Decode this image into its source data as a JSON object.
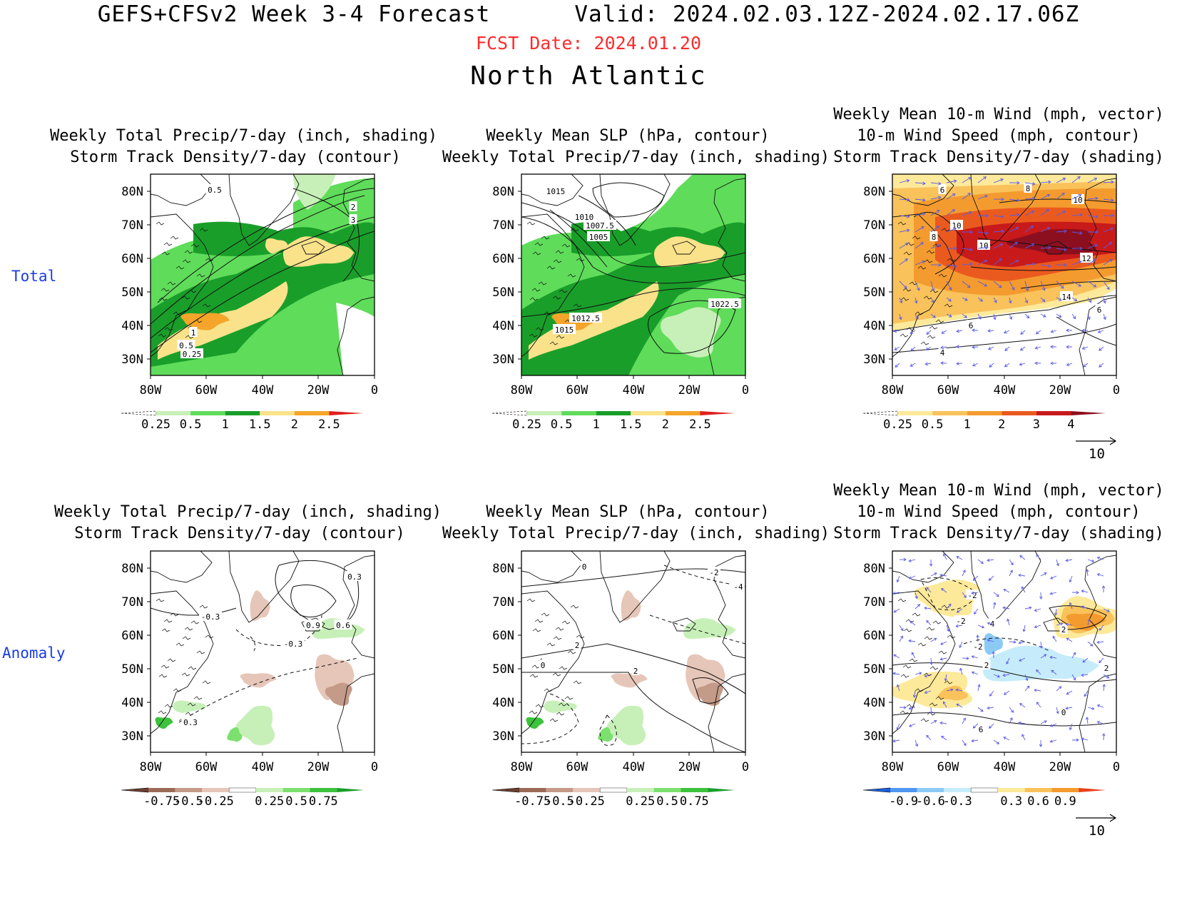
{
  "header": {
    "title": "GEFS+CFSv2 Week 3-4 Forecast      Valid: 2024.02.03.12Z-2024.02.17.06Z",
    "fcst_date": "FCST Date: 2024.01.20",
    "region": "North Atlantic"
  },
  "rows": {
    "total": "Total",
    "anomaly": "Anomaly"
  },
  "titles": {
    "precip_track": [
      "Weekly Total Precip/7-day (inch, shading)",
      "Storm Track Density/7-day (contour)"
    ],
    "slp_precip": [
      "Weekly Mean SLP (hPa, contour)",
      "Weekly Total Precip/7-day (inch, shading)"
    ],
    "wind_track": [
      "Weekly Mean 10-m Wind (mph, vector)",
      "10-m Wind Speed (mph, contour)",
      "Storm Track Density/7-day (shading)"
    ]
  },
  "axes": {
    "lat_ticks": [
      "80N",
      "70N",
      "60N",
      "50N",
      "40N",
      "30N"
    ],
    "lon_ticks": [
      "80W",
      "60W",
      "40W",
      "20W",
      "0"
    ]
  },
  "colorbars": {
    "precip_total": {
      "labels": [
        "0.25",
        "0.5",
        "1",
        "1.5",
        "2",
        "2.5"
      ],
      "colors": [
        "#ffffff",
        "#c7f0b8",
        "#5fdc5a",
        "#1a9e2a",
        "#f9e28a",
        "#f4a52a",
        "#e02020"
      ]
    },
    "track_total": {
      "labels": [
        "0.25",
        "0.5",
        "1",
        "2",
        "3",
        "4"
      ],
      "colors": [
        "#ffffff",
        "#fde99a",
        "#f9c25a",
        "#f49b2f",
        "#ea5a1f",
        "#c81a1a",
        "#8c0f20"
      ]
    },
    "precip_anom": {
      "labels": [
        "-0.75",
        "-0.5",
        "-0.25",
        "0.25",
        "0.5",
        "0.75"
      ],
      "colors": [
        "#6b4030",
        "#9c6b58",
        "#c49a88",
        "#e6c6b8",
        "#ffffff",
        "#c7f0b8",
        "#7be06e",
        "#3cc23c",
        "#1a9e2a"
      ]
    },
    "track_anom": {
      "labels": [
        "-0.9",
        "-0.6",
        "-0.3",
        "0.3",
        "0.6",
        "0.9"
      ],
      "colors": [
        "#1c5fe0",
        "#4f97f2",
        "#8ccaf6",
        "#c6ecfb",
        "#ffffff",
        "#fde99a",
        "#f9c25a",
        "#f49b2f",
        "#e8401a"
      ]
    }
  },
  "vector_ref": "10",
  "contour_labels": {
    "p1": [
      "0.5",
      "2",
      "3",
      "1",
      "0.5",
      "0.25"
    ],
    "p2": [
      "1015",
      "1010",
      "1007.5",
      "1005",
      "1012.5",
      "1015",
      "1022.5"
    ],
    "p3": [
      "6",
      "8",
      "10",
      "10",
      "10",
      "8",
      "12",
      "14",
      "6",
      "6",
      "4"
    ],
    "p4": [
      "0.3",
      "-0.3",
      "0.9",
      "0.6",
      "-0.3",
      "0.3"
    ],
    "p5": [
      "0",
      "-2",
      "-4",
      "2",
      "0",
      "2"
    ],
    "p6": [
      "-2",
      "-2",
      "4",
      "2",
      "-2",
      "2",
      "0",
      "6",
      "2"
    ]
  }
}
